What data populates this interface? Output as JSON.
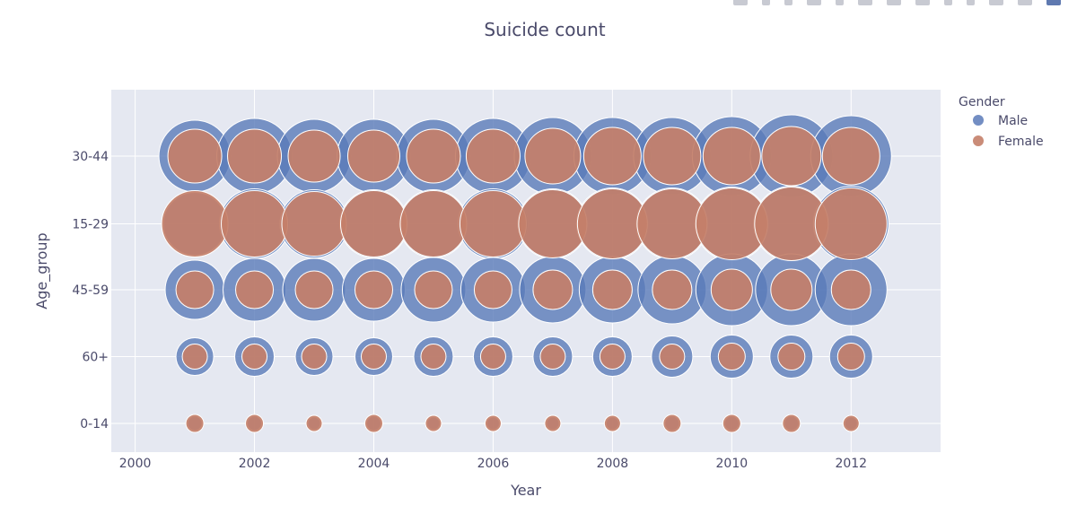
{
  "chart_data": {
    "type": "scatter",
    "title": "Suicide count",
    "xlabel": "Year",
    "ylabel": "Age_group",
    "xlim": [
      1999.6,
      2013.5
    ],
    "x_ticks": [
      2000,
      2002,
      2004,
      2006,
      2008,
      2010,
      2012
    ],
    "x_tick_labels": [
      "2000",
      "2002",
      "2004",
      "2006",
      "2008",
      "2010",
      "2012"
    ],
    "categories": [
      "0-14",
      "60+",
      "45-59",
      "15-29",
      "30-44"
    ],
    "grid": true,
    "legend": {
      "title": "Gender",
      "placement": "top-right outside",
      "entries": [
        "Male",
        "Female"
      ]
    },
    "marker_size_meaning": "suicide count (relative bubble diameter)",
    "series": [
      {
        "name": "Male",
        "color": "#5a7ab9",
        "points": [
          {
            "x": 2001,
            "y": "30-44",
            "size": 80
          },
          {
            "x": 2002,
            "y": "30-44",
            "size": 84
          },
          {
            "x": 2003,
            "y": "30-44",
            "size": 82
          },
          {
            "x": 2004,
            "y": "30-44",
            "size": 82
          },
          {
            "x": 2005,
            "y": "30-44",
            "size": 82
          },
          {
            "x": 2006,
            "y": "30-44",
            "size": 84
          },
          {
            "x": 2007,
            "y": "30-44",
            "size": 86
          },
          {
            "x": 2008,
            "y": "30-44",
            "size": 86
          },
          {
            "x": 2009,
            "y": "30-44",
            "size": 86
          },
          {
            "x": 2010,
            "y": "30-44",
            "size": 88
          },
          {
            "x": 2011,
            "y": "30-44",
            "size": 92
          },
          {
            "x": 2012,
            "y": "30-44",
            "size": 90
          },
          {
            "x": 2001,
            "y": "15-29",
            "size": 70
          },
          {
            "x": 2002,
            "y": "15-29",
            "size": 78
          },
          {
            "x": 2003,
            "y": "15-29",
            "size": 76
          },
          {
            "x": 2004,
            "y": "15-29",
            "size": 76
          },
          {
            "x": 2005,
            "y": "15-29",
            "size": 76
          },
          {
            "x": 2006,
            "y": "15-29",
            "size": 78
          },
          {
            "x": 2007,
            "y": "15-29",
            "size": 78
          },
          {
            "x": 2008,
            "y": "15-29",
            "size": 80
          },
          {
            "x": 2009,
            "y": "15-29",
            "size": 80
          },
          {
            "x": 2010,
            "y": "15-29",
            "size": 82
          },
          {
            "x": 2011,
            "y": "15-29",
            "size": 84
          },
          {
            "x": 2012,
            "y": "15-29",
            "size": 84
          },
          {
            "x": 2001,
            "y": "45-59",
            "size": 66
          },
          {
            "x": 2002,
            "y": "45-59",
            "size": 70
          },
          {
            "x": 2003,
            "y": "45-59",
            "size": 70
          },
          {
            "x": 2004,
            "y": "45-59",
            "size": 70
          },
          {
            "x": 2005,
            "y": "45-59",
            "size": 72
          },
          {
            "x": 2006,
            "y": "45-59",
            "size": 72
          },
          {
            "x": 2007,
            "y": "45-59",
            "size": 74
          },
          {
            "x": 2008,
            "y": "45-59",
            "size": 74
          },
          {
            "x": 2009,
            "y": "45-59",
            "size": 76
          },
          {
            "x": 2010,
            "y": "45-59",
            "size": 80
          },
          {
            "x": 2011,
            "y": "45-59",
            "size": 80
          },
          {
            "x": 2012,
            "y": "45-59",
            "size": 80
          },
          {
            "x": 2001,
            "y": "60+",
            "size": 42
          },
          {
            "x": 2002,
            "y": "60+",
            "size": 44
          },
          {
            "x": 2003,
            "y": "60+",
            "size": 42
          },
          {
            "x": 2004,
            "y": "60+",
            "size": 42
          },
          {
            "x": 2005,
            "y": "60+",
            "size": 44
          },
          {
            "x": 2006,
            "y": "60+",
            "size": 44
          },
          {
            "x": 2007,
            "y": "60+",
            "size": 44
          },
          {
            "x": 2008,
            "y": "60+",
            "size": 44
          },
          {
            "x": 2009,
            "y": "60+",
            "size": 46
          },
          {
            "x": 2010,
            "y": "60+",
            "size": 48
          },
          {
            "x": 2011,
            "y": "60+",
            "size": 48
          },
          {
            "x": 2012,
            "y": "60+",
            "size": 48
          },
          {
            "x": 2001,
            "y": "0-14",
            "size": 16
          },
          {
            "x": 2002,
            "y": "0-14",
            "size": 16
          },
          {
            "x": 2003,
            "y": "0-14",
            "size": 14
          },
          {
            "x": 2004,
            "y": "0-14",
            "size": 16
          },
          {
            "x": 2005,
            "y": "0-14",
            "size": 14
          },
          {
            "x": 2006,
            "y": "0-14",
            "size": 14
          },
          {
            "x": 2007,
            "y": "0-14",
            "size": 14
          },
          {
            "x": 2008,
            "y": "0-14",
            "size": 14
          },
          {
            "x": 2009,
            "y": "0-14",
            "size": 16
          },
          {
            "x": 2010,
            "y": "0-14",
            "size": 16
          },
          {
            "x": 2011,
            "y": "0-14",
            "size": 16
          },
          {
            "x": 2012,
            "y": "0-14",
            "size": 14
          }
        ]
      },
      {
        "name": "Female",
        "color": "#c47f69",
        "points": [
          {
            "x": 2001,
            "y": "30-44",
            "size": 60
          },
          {
            "x": 2002,
            "y": "30-44",
            "size": 60
          },
          {
            "x": 2003,
            "y": "30-44",
            "size": 58
          },
          {
            "x": 2004,
            "y": "30-44",
            "size": 58
          },
          {
            "x": 2005,
            "y": "30-44",
            "size": 60
          },
          {
            "x": 2006,
            "y": "30-44",
            "size": 60
          },
          {
            "x": 2007,
            "y": "30-44",
            "size": 62
          },
          {
            "x": 2008,
            "y": "30-44",
            "size": 64
          },
          {
            "x": 2009,
            "y": "30-44",
            "size": 64
          },
          {
            "x": 2010,
            "y": "30-44",
            "size": 64
          },
          {
            "x": 2011,
            "y": "30-44",
            "size": 66
          },
          {
            "x": 2012,
            "y": "30-44",
            "size": 64
          },
          {
            "x": 2001,
            "y": "15-29",
            "size": 74
          },
          {
            "x": 2002,
            "y": "15-29",
            "size": 74
          },
          {
            "x": 2003,
            "y": "15-29",
            "size": 72
          },
          {
            "x": 2004,
            "y": "15-29",
            "size": 74
          },
          {
            "x": 2005,
            "y": "15-29",
            "size": 74
          },
          {
            "x": 2006,
            "y": "15-29",
            "size": 74
          },
          {
            "x": 2007,
            "y": "15-29",
            "size": 76
          },
          {
            "x": 2008,
            "y": "15-29",
            "size": 78
          },
          {
            "x": 2009,
            "y": "15-29",
            "size": 78
          },
          {
            "x": 2010,
            "y": "15-29",
            "size": 80
          },
          {
            "x": 2011,
            "y": "15-29",
            "size": 82
          },
          {
            "x": 2012,
            "y": "15-29",
            "size": 80
          },
          {
            "x": 2001,
            "y": "45-59",
            "size": 42
          },
          {
            "x": 2002,
            "y": "45-59",
            "size": 42
          },
          {
            "x": 2003,
            "y": "45-59",
            "size": 42
          },
          {
            "x": 2004,
            "y": "45-59",
            "size": 42
          },
          {
            "x": 2005,
            "y": "45-59",
            "size": 42
          },
          {
            "x": 2006,
            "y": "45-59",
            "size": 42
          },
          {
            "x": 2007,
            "y": "45-59",
            "size": 44
          },
          {
            "x": 2008,
            "y": "45-59",
            "size": 44
          },
          {
            "x": 2009,
            "y": "45-59",
            "size": 44
          },
          {
            "x": 2010,
            "y": "45-59",
            "size": 46
          },
          {
            "x": 2011,
            "y": "45-59",
            "size": 46
          },
          {
            "x": 2012,
            "y": "45-59",
            "size": 44
          },
          {
            "x": 2001,
            "y": "60+",
            "size": 28
          },
          {
            "x": 2002,
            "y": "60+",
            "size": 28
          },
          {
            "x": 2003,
            "y": "60+",
            "size": 28
          },
          {
            "x": 2004,
            "y": "60+",
            "size": 28
          },
          {
            "x": 2005,
            "y": "60+",
            "size": 28
          },
          {
            "x": 2006,
            "y": "60+",
            "size": 28
          },
          {
            "x": 2007,
            "y": "60+",
            "size": 28
          },
          {
            "x": 2008,
            "y": "60+",
            "size": 28
          },
          {
            "x": 2009,
            "y": "60+",
            "size": 28
          },
          {
            "x": 2010,
            "y": "60+",
            "size": 30
          },
          {
            "x": 2011,
            "y": "60+",
            "size": 30
          },
          {
            "x": 2012,
            "y": "60+",
            "size": 30
          },
          {
            "x": 2001,
            "y": "0-14",
            "size": 20
          },
          {
            "x": 2002,
            "y": "0-14",
            "size": 20
          },
          {
            "x": 2003,
            "y": "0-14",
            "size": 18
          },
          {
            "x": 2004,
            "y": "0-14",
            "size": 20
          },
          {
            "x": 2005,
            "y": "0-14",
            "size": 18
          },
          {
            "x": 2006,
            "y": "0-14",
            "size": 18
          },
          {
            "x": 2007,
            "y": "0-14",
            "size": 18
          },
          {
            "x": 2008,
            "y": "0-14",
            "size": 18
          },
          {
            "x": 2009,
            "y": "0-14",
            "size": 20
          },
          {
            "x": 2010,
            "y": "0-14",
            "size": 20
          },
          {
            "x": 2011,
            "y": "0-14",
            "size": 20
          },
          {
            "x": 2012,
            "y": "0-14",
            "size": 18
          }
        ]
      }
    ]
  },
  "toolbar": {
    "icons": [
      "camera-icon",
      "zoom-icon",
      "pan-icon",
      "box-select-icon",
      "lasso-select-icon",
      "zoom-in-icon",
      "zoom-out-icon",
      "autoscale-icon",
      "reset-axes-icon",
      "spike-lines-icon",
      "hover-closest-icon",
      "hover-compare-icon",
      "plotly-logo-icon"
    ]
  }
}
